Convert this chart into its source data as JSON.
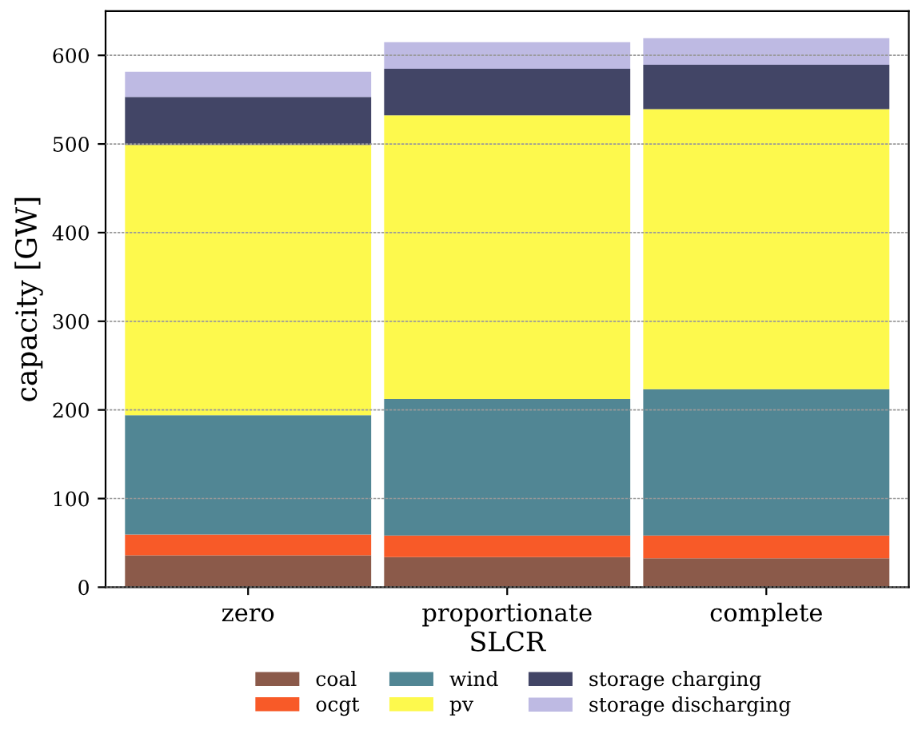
{
  "chart_data": {
    "type": "bar",
    "stacked": true,
    "xlabel": "SLCR",
    "ylabel": "capacity [GW]",
    "categories": [
      "zero",
      "proportionate",
      "complete"
    ],
    "series": [
      {
        "name": "coal",
        "color": "#8b5a4a",
        "values": [
          36,
          34,
          32.5
        ]
      },
      {
        "name": "ocgt",
        "color": "#f85a28",
        "values": [
          23.5,
          24.3,
          25.8
        ]
      },
      {
        "name": "wind",
        "color": "#518694",
        "values": [
          134.5,
          154,
          165
        ]
      },
      {
        "name": "pv",
        "color": "#fdf94d",
        "values": [
          305,
          320,
          316
        ]
      },
      {
        "name": "storage charging",
        "color": "#424566",
        "values": [
          54,
          52.5,
          50
        ]
      },
      {
        "name": "storage discharging",
        "color": "#bebae3",
        "values": [
          28.5,
          30,
          30
        ]
      }
    ],
    "ylim": [
      0,
      650
    ],
    "yticks": [
      0,
      100,
      200,
      300,
      400,
      500,
      600
    ],
    "grid": "y",
    "legend": "bottom"
  }
}
